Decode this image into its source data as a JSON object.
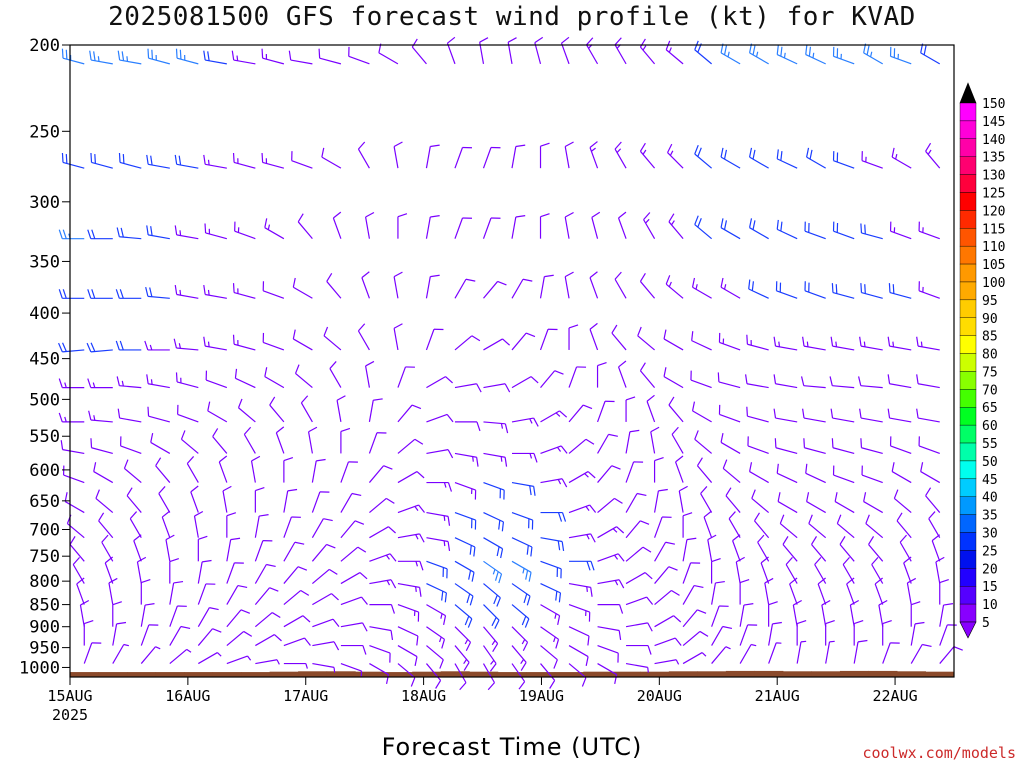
{
  "page": {
    "title": "2025081500 GFS forecast wind profile (kt) for KVAD",
    "xlabel": "Forecast Time (UTC)",
    "credit": "coolwx.com/models"
  },
  "colors": {
    "ground": "#8B4A2B",
    "barb_slow": "#7a00ff",
    "barb_medium": "#1a3dff",
    "barb_fast": "#2a7fff"
  },
  "chart_data": {
    "type": "wind-barb profile",
    "title": "2025081500 GFS forecast wind profile (kt) for KVAD",
    "xlabel": "Forecast Time (UTC)",
    "ylabel": "",
    "x_ticks": [
      "15AUG",
      "16AUG",
      "17AUG",
      "18AUG",
      "19AUG",
      "20AUG",
      "21AUG",
      "22AUG"
    ],
    "x_tick_year": "2025",
    "x_range_days": [
      0,
      7.5
    ],
    "y_ticks": [
      200,
      250,
      300,
      350,
      400,
      450,
      500,
      550,
      600,
      650,
      700,
      750,
      800,
      850,
      900,
      950,
      1000
    ],
    "y_units": "hPa",
    "y_scale": "log",
    "y_range": [
      200,
      1025
    ],
    "colorbar": {
      "labels": [
        150,
        145,
        140,
        135,
        130,
        125,
        120,
        115,
        110,
        105,
        100,
        95,
        90,
        85,
        80,
        75,
        70,
        65,
        60,
        55,
        50,
        45,
        40,
        35,
        30,
        25,
        20,
        15,
        10,
        5
      ],
      "colors": [
        "#000000",
        "#ff00ff",
        "#ff00d9",
        "#ff00a8",
        "#ff0070",
        "#ff003c",
        "#ff0000",
        "#ff2a00",
        "#ff5500",
        "#ff7700",
        "#ff9900",
        "#ffaa00",
        "#ffcc00",
        "#ffdd00",
        "#ffff00",
        "#ccff00",
        "#88ff00",
        "#44ff00",
        "#00ff22",
        "#00ff66",
        "#00ffaa",
        "#00ffee",
        "#00ccff",
        "#0099ff",
        "#0066ff",
        "#0033ff",
        "#0011ee",
        "#2200ff",
        "#5500ff",
        "#8800ff"
      ]
    },
    "wind_levels_hPa": [
      210,
      275,
      330,
      385,
      440,
      485,
      530,
      575,
      620,
      670,
      715,
      760,
      805,
      850,
      900,
      945,
      990
    ],
    "time_step_hours": 6,
    "barb_columns": 31,
    "rows": [
      {
        "p": 210,
        "dirs": [
          285,
          280,
          280,
          285,
          285,
          280,
          280,
          285,
          280,
          285,
          290,
          300,
          320,
          340,
          350,
          350,
          345,
          340,
          330,
          330,
          320,
          310,
          310,
          300,
          300,
          295,
          295,
          290,
          300,
          290,
          300
        ],
        "speeds": [
          25,
          25,
          25,
          25,
          25,
          20,
          15,
          15,
          10,
          10,
          10,
          10,
          10,
          10,
          10,
          10,
          10,
          10,
          15,
          15,
          15,
          15,
          20,
          25,
          25,
          25,
          25,
          25,
          25,
          25,
          20
        ]
      },
      {
        "p": 275,
        "dirs": [
          285,
          285,
          285,
          280,
          280,
          280,
          285,
          285,
          290,
          300,
          330,
          350,
          10,
          20,
          20,
          10,
          0,
          350,
          340,
          330,
          320,
          315,
          310,
          300,
          300,
          295,
          300,
          290,
          290,
          300,
          320
        ],
        "speeds": [
          20,
          20,
          20,
          20,
          20,
          15,
          15,
          15,
          10,
          10,
          10,
          10,
          10,
          10,
          10,
          10,
          10,
          10,
          15,
          15,
          15,
          15,
          20,
          20,
          20,
          20,
          20,
          20,
          15,
          15,
          15
        ]
      },
      {
        "p": 330,
        "dirs": [
          270,
          270,
          275,
          280,
          280,
          285,
          290,
          300,
          320,
          340,
          350,
          0,
          10,
          20,
          20,
          10,
          0,
          350,
          345,
          340,
          330,
          320,
          310,
          300,
          300,
          295,
          290,
          290,
          285,
          290,
          290
        ],
        "speeds": [
          25,
          20,
          20,
          20,
          15,
          15,
          15,
          15,
          10,
          10,
          10,
          10,
          10,
          10,
          10,
          10,
          10,
          10,
          10,
          10,
          15,
          15,
          20,
          20,
          20,
          20,
          20,
          20,
          20,
          15,
          15
        ]
      },
      {
        "p": 385,
        "dirs": [
          270,
          270,
          270,
          275,
          280,
          280,
          285,
          290,
          300,
          320,
          340,
          350,
          10,
          30,
          40,
          30,
          10,
          350,
          340,
          330,
          320,
          310,
          300,
          300,
          295,
          290,
          290,
          285,
          285,
          285,
          290
        ],
        "speeds": [
          20,
          20,
          20,
          20,
          15,
          15,
          15,
          10,
          10,
          10,
          10,
          10,
          10,
          10,
          10,
          10,
          10,
          10,
          10,
          10,
          10,
          15,
          15,
          15,
          20,
          20,
          20,
          20,
          20,
          20,
          15
        ]
      },
      {
        "p": 440,
        "dirs": [
          265,
          265,
          270,
          270,
          275,
          280,
          285,
          290,
          300,
          310,
          330,
          350,
          20,
          50,
          60,
          40,
          20,
          0,
          340,
          320,
          310,
          300,
          295,
          290,
          285,
          280,
          280,
          280,
          280,
          280,
          280
        ],
        "speeds": [
          20,
          20,
          20,
          15,
          15,
          15,
          15,
          10,
          10,
          10,
          10,
          10,
          10,
          10,
          10,
          10,
          10,
          10,
          10,
          10,
          10,
          10,
          10,
          15,
          15,
          15,
          15,
          15,
          15,
          15,
          15
        ]
      },
      {
        "p": 485,
        "dirs": [
          270,
          270,
          275,
          280,
          285,
          290,
          295,
          300,
          310,
          330,
          350,
          20,
          60,
          80,
          80,
          60,
          40,
          20,
          0,
          340,
          320,
          300,
          290,
          285,
          280,
          280,
          275,
          275,
          275,
          280,
          280
        ],
        "speeds": [
          15,
          15,
          15,
          15,
          15,
          10,
          10,
          10,
          10,
          10,
          10,
          10,
          10,
          10,
          10,
          10,
          10,
          10,
          10,
          10,
          10,
          10,
          10,
          10,
          10,
          10,
          10,
          10,
          10,
          10,
          10
        ]
      },
      {
        "p": 530,
        "dirs": [
          270,
          275,
          280,
          285,
          290,
          300,
          310,
          320,
          330,
          350,
          10,
          40,
          70,
          90,
          95,
          80,
          60,
          40,
          20,
          0,
          340,
          320,
          300,
          290,
          285,
          280,
          280,
          280,
          280,
          280,
          280
        ],
        "speeds": [
          15,
          15,
          10,
          10,
          10,
          10,
          10,
          10,
          10,
          10,
          10,
          10,
          10,
          10,
          15,
          15,
          15,
          10,
          10,
          10,
          10,
          10,
          10,
          10,
          10,
          10,
          10,
          10,
          10,
          10,
          10
        ]
      },
      {
        "p": 575,
        "dirs": [
          280,
          285,
          290,
          300,
          310,
          320,
          330,
          340,
          350,
          0,
          20,
          50,
          80,
          100,
          100,
          90,
          70,
          50,
          30,
          10,
          350,
          330,
          310,
          300,
          290,
          285,
          285,
          285,
          285,
          290,
          290
        ],
        "speeds": [
          10,
          10,
          10,
          10,
          10,
          10,
          10,
          10,
          10,
          10,
          10,
          10,
          10,
          15,
          15,
          15,
          15,
          10,
          10,
          10,
          10,
          10,
          10,
          10,
          10,
          10,
          10,
          10,
          10,
          10,
          10
        ]
      },
      {
        "p": 620,
        "dirs": [
          290,
          300,
          310,
          320,
          330,
          340,
          350,
          0,
          10,
          20,
          40,
          60,
          90,
          110,
          110,
          100,
          80,
          60,
          40,
          20,
          0,
          340,
          320,
          310,
          300,
          295,
          295,
          290,
          290,
          300,
          300
        ],
        "speeds": [
          10,
          10,
          10,
          10,
          10,
          10,
          10,
          10,
          10,
          10,
          10,
          10,
          15,
          15,
          20,
          20,
          15,
          15,
          10,
          10,
          10,
          10,
          10,
          10,
          10,
          10,
          10,
          10,
          10,
          10,
          10
        ]
      },
      {
        "p": 670,
        "dirs": [
          300,
          310,
          320,
          330,
          340,
          350,
          0,
          10,
          20,
          30,
          50,
          70,
          100,
          110,
          115,
          110,
          90,
          70,
          50,
          30,
          10,
          350,
          330,
          320,
          310,
          300,
          300,
          300,
          300,
          310,
          320
        ],
        "speeds": [
          10,
          10,
          10,
          10,
          10,
          10,
          10,
          10,
          10,
          10,
          10,
          15,
          15,
          20,
          20,
          20,
          20,
          15,
          10,
          10,
          10,
          10,
          10,
          10,
          10,
          10,
          10,
          10,
          10,
          10,
          10
        ]
      },
      {
        "p": 715,
        "dirs": [
          310,
          320,
          330,
          340,
          350,
          0,
          10,
          20,
          30,
          40,
          60,
          80,
          100,
          115,
          120,
          115,
          100,
          80,
          60,
          40,
          20,
          0,
          340,
          330,
          320,
          310,
          310,
          310,
          310,
          320,
          330
        ],
        "speeds": [
          10,
          10,
          10,
          10,
          10,
          10,
          10,
          10,
          10,
          10,
          10,
          15,
          15,
          20,
          20,
          20,
          20,
          15,
          15,
          10,
          10,
          10,
          10,
          10,
          10,
          10,
          10,
          10,
          10,
          10,
          10
        ]
      },
      {
        "p": 760,
        "dirs": [
          320,
          330,
          340,
          350,
          0,
          10,
          20,
          30,
          40,
          50,
          70,
          90,
          110,
          120,
          125,
          120,
          110,
          90,
          70,
          50,
          30,
          10,
          350,
          340,
          330,
          320,
          320,
          320,
          320,
          330,
          340
        ],
        "speeds": [
          10,
          10,
          10,
          10,
          10,
          10,
          10,
          10,
          10,
          10,
          15,
          15,
          20,
          20,
          25,
          25,
          20,
          20,
          15,
          10,
          10,
          10,
          10,
          10,
          10,
          10,
          10,
          10,
          10,
          10,
          10
        ]
      },
      {
        "p": 805,
        "dirs": [
          330,
          340,
          350,
          0,
          10,
          20,
          30,
          40,
          50,
          60,
          80,
          100,
          115,
          125,
          130,
          125,
          115,
          100,
          80,
          60,
          40,
          20,
          0,
          350,
          340,
          330,
          330,
          330,
          330,
          340,
          350
        ],
        "speeds": [
          10,
          10,
          10,
          10,
          10,
          10,
          10,
          10,
          10,
          10,
          15,
          15,
          20,
          20,
          20,
          20,
          20,
          15,
          15,
          10,
          10,
          10,
          10,
          10,
          10,
          10,
          10,
          10,
          10,
          10,
          10
        ]
      },
      {
        "p": 850,
        "dirs": [
          340,
          350,
          0,
          10,
          20,
          30,
          40,
          50,
          60,
          70,
          90,
          110,
          120,
          130,
          135,
          130,
          120,
          110,
          90,
          70,
          50,
          30,
          10,
          0,
          350,
          340,
          340,
          340,
          340,
          350,
          0
        ],
        "speeds": [
          10,
          10,
          10,
          10,
          10,
          10,
          10,
          10,
          10,
          10,
          10,
          15,
          15,
          20,
          20,
          20,
          15,
          15,
          10,
          10,
          10,
          10,
          10,
          10,
          10,
          10,
          10,
          10,
          10,
          10,
          10
        ]
      },
      {
        "p": 900,
        "dirs": [
          350,
          0,
          10,
          20,
          30,
          40,
          50,
          60,
          70,
          80,
          100,
          115,
          125,
          135,
          140,
          135,
          125,
          115,
          100,
          80,
          60,
          40,
          20,
          10,
          0,
          350,
          350,
          350,
          350,
          0,
          10
        ],
        "speeds": [
          10,
          10,
          10,
          10,
          10,
          10,
          10,
          10,
          10,
          10,
          10,
          10,
          15,
          15,
          15,
          15,
          15,
          10,
          10,
          10,
          10,
          10,
          10,
          10,
          10,
          10,
          10,
          10,
          10,
          10,
          10
        ]
      },
      {
        "p": 945,
        "dirs": [
          0,
          10,
          20,
          30,
          40,
          50,
          60,
          70,
          80,
          90,
          110,
          120,
          130,
          140,
          145,
          140,
          130,
          120,
          110,
          90,
          70,
          50,
          30,
          20,
          10,
          0,
          0,
          0,
          0,
          10,
          20
        ],
        "speeds": [
          10,
          10,
          10,
          10,
          10,
          10,
          10,
          10,
          10,
          10,
          10,
          10,
          10,
          15,
          15,
          15,
          10,
          10,
          10,
          10,
          10,
          10,
          10,
          10,
          10,
          10,
          10,
          10,
          10,
          10,
          10
        ]
      },
      {
        "p": 990,
        "dirs": [
          20,
          30,
          40,
          50,
          60,
          70,
          80,
          90,
          100,
          110,
          120,
          130,
          140,
          150,
          150,
          145,
          140,
          130,
          120,
          100,
          80,
          60,
          40,
          30,
          20,
          10,
          10,
          10,
          20,
          30,
          40
        ],
        "speeds": [
          10,
          5,
          5,
          5,
          5,
          5,
          5,
          5,
          5,
          5,
          10,
          10,
          10,
          10,
          10,
          10,
          10,
          10,
          10,
          5,
          5,
          5,
          5,
          5,
          5,
          5,
          5,
          10,
          10,
          10,
          10
        ]
      }
    ],
    "terrain": {
      "description": "ground surface pressure near bottom",
      "surface_p": [
        1012,
        1012,
        1012,
        1012,
        1012,
        1012,
        1012,
        1011,
        1010,
        1010,
        1011,
        1012,
        1011,
        1010,
        1011,
        1012,
        1012,
        1012,
        1011,
        1011,
        1011,
        1010,
        1010,
        1009,
        1009,
        1010,
        1010,
        1009,
        1009,
        1010,
        1011
      ]
    }
  }
}
